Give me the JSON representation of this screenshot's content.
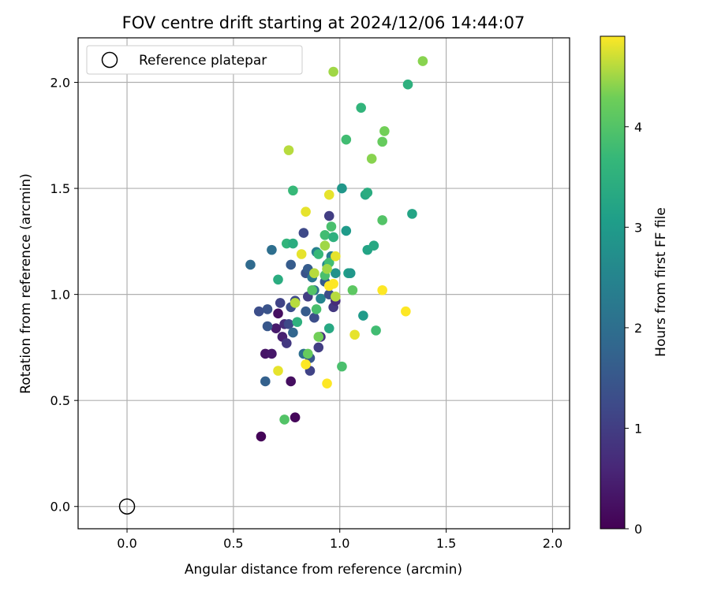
{
  "chart_data": {
    "type": "scatter",
    "title": "FOV centre drift starting at 2024/12/06 14:44:07",
    "xlabel": "Angular distance from reference (arcmin)",
    "ylabel": "Rotation from reference (arcmin)",
    "xlim": [
      -0.23,
      2.08
    ],
    "ylim": [
      -0.105,
      2.21
    ],
    "xticks": [
      0.0,
      0.5,
      1.0,
      1.5,
      2.0
    ],
    "yticks": [
      0.0,
      0.5,
      1.0,
      1.5,
      2.0
    ],
    "xtick_labels": [
      "0.0",
      "0.5",
      "1.0",
      "1.5",
      "2.0"
    ],
    "ytick_labels": [
      "0.0",
      "0.5",
      "1.0",
      "1.5",
      "2.0"
    ],
    "grid": true,
    "legend": {
      "position": "top-left",
      "entries": [
        "Reference platepar"
      ]
    },
    "reference_point": {
      "x": 0.0,
      "y": 0.0
    },
    "colorbar": {
      "label": "Hours from first FF file",
      "min": 0,
      "max": 4.9,
      "ticks": [
        0,
        1,
        2,
        3,
        4
      ],
      "tick_labels": [
        "0",
        "1",
        "2",
        "3",
        "4"
      ],
      "colormap": "viridis"
    },
    "points": [
      {
        "x": 0.63,
        "y": 0.33,
        "c": 0.05
      },
      {
        "x": 0.79,
        "y": 0.42,
        "c": 0.1
      },
      {
        "x": 0.77,
        "y": 0.59,
        "c": 0.2
      },
      {
        "x": 0.65,
        "y": 0.72,
        "c": 0.3
      },
      {
        "x": 0.68,
        "y": 0.72,
        "c": 0.35
      },
      {
        "x": 0.71,
        "y": 0.91,
        "c": 0.2
      },
      {
        "x": 0.7,
        "y": 0.84,
        "c": 0.4
      },
      {
        "x": 0.73,
        "y": 0.8,
        "c": 0.5
      },
      {
        "x": 0.74,
        "y": 0.86,
        "c": 0.7
      },
      {
        "x": 0.75,
        "y": 0.77,
        "c": 0.9
      },
      {
        "x": 0.72,
        "y": 0.96,
        "c": 1.1
      },
      {
        "x": 0.76,
        "y": 0.86,
        "c": 1.2
      },
      {
        "x": 0.66,
        "y": 0.85,
        "c": 1.5
      },
      {
        "x": 0.65,
        "y": 0.59,
        "c": 1.7
      },
      {
        "x": 0.62,
        "y": 0.92,
        "c": 1.3
      },
      {
        "x": 0.66,
        "y": 0.93,
        "c": 1.4
      },
      {
        "x": 0.77,
        "y": 0.94,
        "c": 1.3
      },
      {
        "x": 0.79,
        "y": 0.97,
        "c": 1.2
      },
      {
        "x": 0.78,
        "y": 0.82,
        "c": 1.8
      },
      {
        "x": 0.58,
        "y": 1.14,
        "c": 1.9
      },
      {
        "x": 0.68,
        "y": 1.21,
        "c": 2.0
      },
      {
        "x": 0.77,
        "y": 1.14,
        "c": 1.6
      },
      {
        "x": 0.83,
        "y": 1.29,
        "c": 1.2
      },
      {
        "x": 0.84,
        "y": 1.1,
        "c": 1.4
      },
      {
        "x": 0.85,
        "y": 1.12,
        "c": 1.6
      },
      {
        "x": 0.86,
        "y": 0.7,
        "c": 1.5
      },
      {
        "x": 0.86,
        "y": 0.64,
        "c": 1.1
      },
      {
        "x": 0.84,
        "y": 0.92,
        "c": 1.6
      },
      {
        "x": 0.85,
        "y": 0.99,
        "c": 1.0
      },
      {
        "x": 0.83,
        "y": 0.72,
        "c": 2.0
      },
      {
        "x": 0.88,
        "y": 0.89,
        "c": 1.3
      },
      {
        "x": 0.9,
        "y": 0.75,
        "c": 1.0
      },
      {
        "x": 0.91,
        "y": 0.8,
        "c": 0.8
      },
      {
        "x": 0.95,
        "y": 1.37,
        "c": 1.0
      },
      {
        "x": 0.97,
        "y": 0.94,
        "c": 0.9
      },
      {
        "x": 0.98,
        "y": 0.97,
        "c": 0.7
      },
      {
        "x": 0.88,
        "y": 1.02,
        "c": 2.0
      },
      {
        "x": 0.91,
        "y": 0.98,
        "c": 2.5
      },
      {
        "x": 0.87,
        "y": 1.08,
        "c": 2.2
      },
      {
        "x": 0.93,
        "y": 1.06,
        "c": 1.6
      },
      {
        "x": 0.95,
        "y": 1.0,
        "c": 1.3
      },
      {
        "x": 0.96,
        "y": 1.18,
        "c": 2.3
      },
      {
        "x": 0.89,
        "y": 1.2,
        "c": 2.4
      },
      {
        "x": 0.94,
        "y": 1.14,
        "c": 2.6
      },
      {
        "x": 0.98,
        "y": 1.1,
        "c": 2.8
      },
      {
        "x": 1.01,
        "y": 1.5,
        "c": 2.9
      },
      {
        "x": 1.03,
        "y": 1.3,
        "c": 3.0
      },
      {
        "x": 1.04,
        "y": 1.1,
        "c": 3.1
      },
      {
        "x": 1.05,
        "y": 1.1,
        "c": 2.9
      },
      {
        "x": 1.11,
        "y": 0.9,
        "c": 3.0
      },
      {
        "x": 1.13,
        "y": 1.21,
        "c": 3.2
      },
      {
        "x": 1.16,
        "y": 1.23,
        "c": 3.3
      },
      {
        "x": 1.12,
        "y": 1.47,
        "c": 3.3
      },
      {
        "x": 1.13,
        "y": 1.48,
        "c": 3.4
      },
      {
        "x": 1.34,
        "y": 1.38,
        "c": 3.2
      },
      {
        "x": 1.32,
        "y": 1.99,
        "c": 3.5
      },
      {
        "x": 1.1,
        "y": 1.88,
        "c": 3.6
      },
      {
        "x": 0.95,
        "y": 0.84,
        "c": 3.3
      },
      {
        "x": 0.8,
        "y": 0.87,
        "c": 3.5
      },
      {
        "x": 0.71,
        "y": 1.07,
        "c": 3.4
      },
      {
        "x": 0.75,
        "y": 1.24,
        "c": 3.6
      },
      {
        "x": 0.78,
        "y": 1.24,
        "c": 3.4
      },
      {
        "x": 0.78,
        "y": 1.49,
        "c": 3.7
      },
      {
        "x": 0.9,
        "y": 1.19,
        "c": 3.7
      },
      {
        "x": 0.93,
        "y": 1.28,
        "c": 3.8
      },
      {
        "x": 0.96,
        "y": 1.32,
        "c": 3.9
      },
      {
        "x": 0.97,
        "y": 1.27,
        "c": 3.5
      },
      {
        "x": 0.95,
        "y": 1.15,
        "c": 3.8
      },
      {
        "x": 0.93,
        "y": 1.09,
        "c": 3.9
      },
      {
        "x": 0.89,
        "y": 0.93,
        "c": 3.9
      },
      {
        "x": 0.87,
        "y": 1.02,
        "c": 4.0
      },
      {
        "x": 1.17,
        "y": 0.83,
        "c": 3.8
      },
      {
        "x": 1.03,
        "y": 1.73,
        "c": 3.8
      },
      {
        "x": 1.01,
        "y": 0.66,
        "c": 3.9
      },
      {
        "x": 1.06,
        "y": 1.02,
        "c": 4.1
      },
      {
        "x": 1.2,
        "y": 1.35,
        "c": 4.0
      },
      {
        "x": 0.74,
        "y": 0.41,
        "c": 4.0
      },
      {
        "x": 0.85,
        "y": 0.72,
        "c": 4.2
      },
      {
        "x": 0.9,
        "y": 0.8,
        "c": 4.3
      },
      {
        "x": 1.2,
        "y": 1.72,
        "c": 4.2
      },
      {
        "x": 1.21,
        "y": 1.77,
        "c": 4.3
      },
      {
        "x": 1.15,
        "y": 1.64,
        "c": 4.4
      },
      {
        "x": 1.39,
        "y": 2.1,
        "c": 4.4
      },
      {
        "x": 0.97,
        "y": 2.05,
        "c": 4.5
      },
      {
        "x": 0.76,
        "y": 1.68,
        "c": 4.6
      },
      {
        "x": 0.79,
        "y": 0.96,
        "c": 4.6
      },
      {
        "x": 0.93,
        "y": 1.23,
        "c": 4.5
      },
      {
        "x": 0.88,
        "y": 1.1,
        "c": 4.6
      },
      {
        "x": 0.94,
        "y": 1.12,
        "c": 4.5
      },
      {
        "x": 0.98,
        "y": 0.99,
        "c": 4.6
      },
      {
        "x": 0.82,
        "y": 1.19,
        "c": 4.8
      },
      {
        "x": 0.84,
        "y": 1.39,
        "c": 4.8
      },
      {
        "x": 0.95,
        "y": 1.47,
        "c": 4.8
      },
      {
        "x": 0.98,
        "y": 1.18,
        "c": 4.8
      },
      {
        "x": 0.97,
        "y": 1.05,
        "c": 4.9
      },
      {
        "x": 0.95,
        "y": 1.04,
        "c": 4.9
      },
      {
        "x": 1.07,
        "y": 0.81,
        "c": 4.8
      },
      {
        "x": 1.2,
        "y": 1.02,
        "c": 4.9
      },
      {
        "x": 1.31,
        "y": 0.92,
        "c": 4.9
      },
      {
        "x": 0.71,
        "y": 0.64,
        "c": 4.8
      },
      {
        "x": 0.84,
        "y": 0.67,
        "c": 4.9
      },
      {
        "x": 0.94,
        "y": 0.58,
        "c": 4.9
      }
    ]
  }
}
